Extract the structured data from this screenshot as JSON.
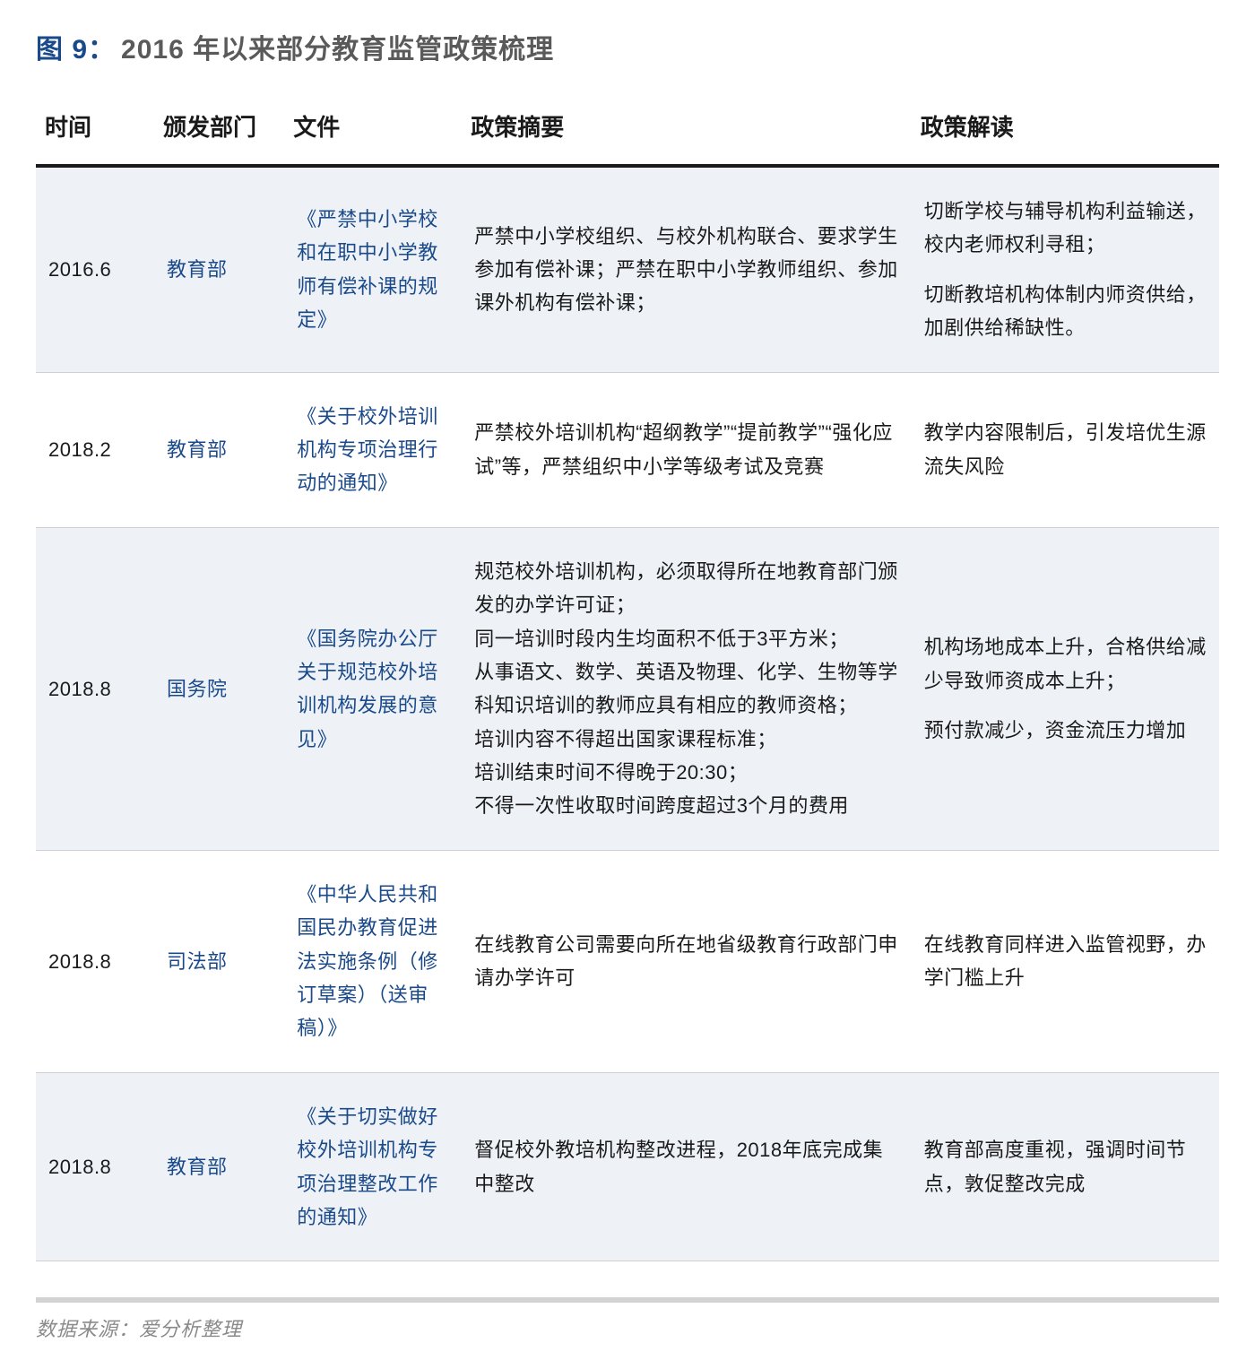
{
  "colors": {
    "accent": "#1b4a8a",
    "row_alt_bg": "#eef2f7",
    "header_border": "#1a1a1a",
    "row_border": "#d0d0d0",
    "source_divider": "#d3d3d3",
    "source_text": "#8a8a8a",
    "body_text": "#1a1a1a",
    "caption_text": "#5a5a5a"
  },
  "title": {
    "label": "图 9：",
    "caption": "2016 年以来部分教育监管政策梳理"
  },
  "columns": [
    {
      "key": "date",
      "label": "时间",
      "width": "10%"
    },
    {
      "key": "department",
      "label": "颁发部门",
      "width": "11%"
    },
    {
      "key": "document",
      "label": "文件",
      "width": "15%"
    },
    {
      "key": "summary",
      "label": "政策摘要",
      "width": "38%"
    },
    {
      "key": "interpretation",
      "label": "政策解读",
      "width": "26%"
    }
  ],
  "rows": [
    {
      "date": "2016.6",
      "department": "教育部",
      "document": "《严禁中小学校和在职中小学教师有偿补课的规定》",
      "summary": "严禁中小学校组织、与校外机构联合、要求学生参加有偿补课；严禁在职中小学教师组织、参加课外机构有偿补课；",
      "interpretation_parts": [
        "切断学校与辅导机构利益输送，校内老师权利寻租；",
        "切断教培机构体制内师资供给，加剧供给稀缺性。"
      ]
    },
    {
      "date": "2018.2",
      "department": "教育部",
      "document": "《关于校外培训机构专项治理行动的通知》",
      "summary": "严禁校外培训机构“超纲教学”“提前教学”“强化应试”等，严禁组织中小学等级考试及竞赛",
      "interpretation": "教学内容限制后，引发培优生源流失风险"
    },
    {
      "date": "2018.8",
      "department": "国务院",
      "document": "《国务院办公厅关于规范校外培训机构发展的意见》",
      "summary_parts": [
        "规范校外培训机构，必须取得所在地教育部门颁发的办学许可证；",
        "同一培训时段内生均面积不低于3平方米；",
        "从事语文、数学、英语及物理、化学、生物等学科知识培训的教师应具有相应的教师资格；",
        "培训内容不得超出国家课程标准；",
        "培训结束时间不得晚于20:30；",
        "不得一次性收取时间跨度超过3个月的费用"
      ],
      "interpretation_parts": [
        "机构场地成本上升，合格供给减少导致师资成本上升；",
        "预付款减少，资金流压力增加"
      ]
    },
    {
      "date": "2018.8",
      "department": "司法部",
      "document": "《中华人民共和国民办教育促进法实施条例（修订草案）（送审稿）》",
      "summary": "在线教育公司需要向所在地省级教育行政部门申请办学许可",
      "interpretation": "在线教育同样进入监管视野，办学门槛上升"
    },
    {
      "date": "2018.8",
      "department": "教育部",
      "document": "《关于切实做好校外培训机构专项治理整改工作的通知》",
      "summary": "督促校外教培机构整改进程，2018年底完成集中整改",
      "interpretation": "教育部高度重视，强调时间节点，敦促整改完成"
    }
  ],
  "source": "数据来源：爱分析整理"
}
